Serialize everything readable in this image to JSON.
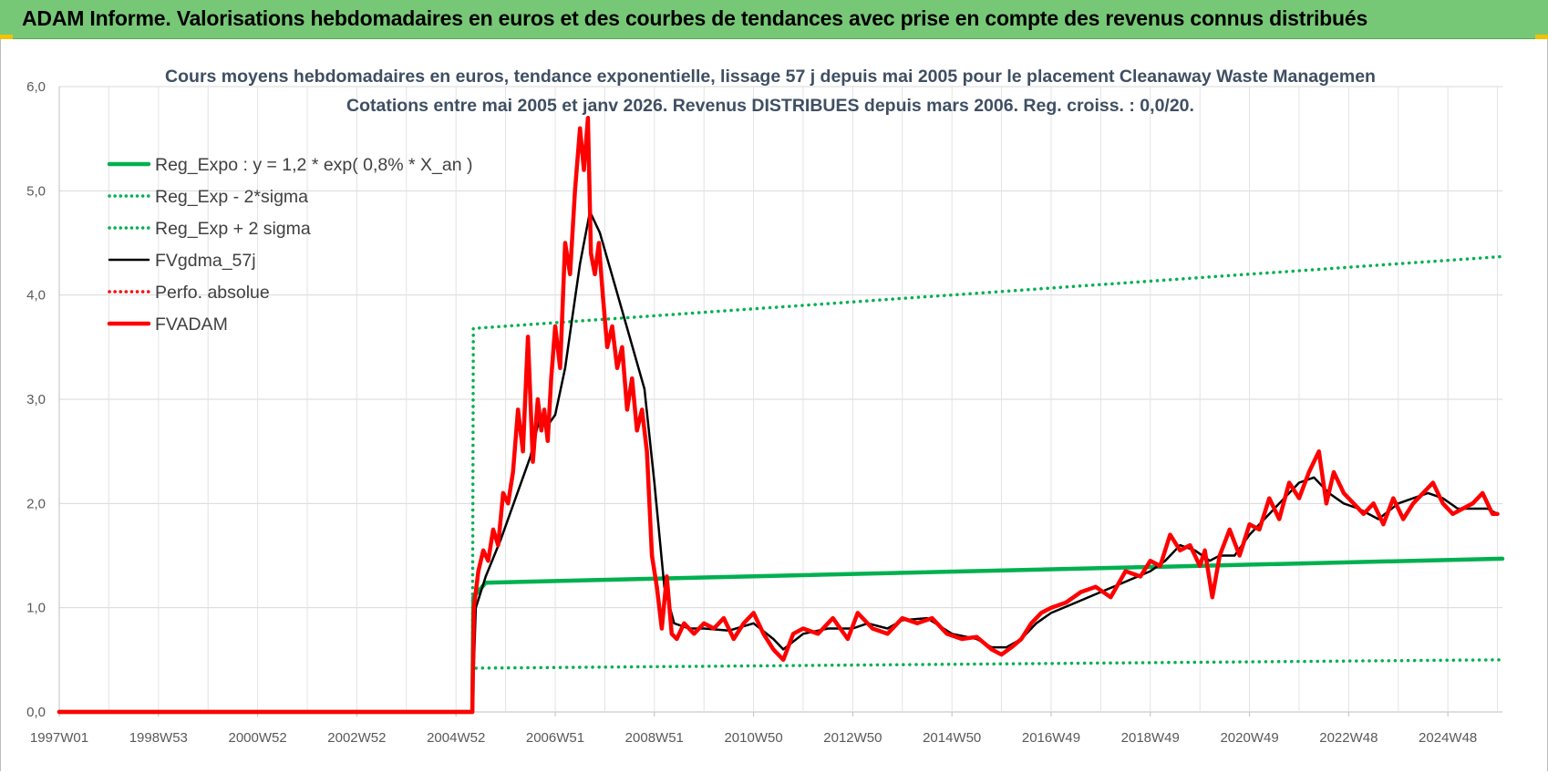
{
  "banner": {
    "title": "ADAM Informe. Valorisations hebdomadaires en euros et des courbes de tendances avec prise en compte des revenus connus distribués"
  },
  "colors": {
    "banner": "#77c876",
    "trend": "#00b050",
    "fvgdma": "#000000",
    "fvadam": "#ff0000",
    "perfo": "#ff0000"
  },
  "chart_data": {
    "type": "line",
    "title": "Cours moyens hebdomadaires en euros, tendance exponentielle, lissage 57 j depuis mai 2005 pour le placement Cleanaway Waste Managemen",
    "subtitle": "Cotations entre mai 2005 et janv 2026. Revenus DISTRIBUES depuis mars 2006. Reg. croiss. : 0,0/20.",
    "xlabel": "",
    "ylabel": "",
    "ylim": [
      0,
      6
    ],
    "y_ticks": [
      "0,0",
      "1,0",
      "2,0",
      "3,0",
      "4,0",
      "5,0",
      "6,0"
    ],
    "x_range": [
      1997.0,
      2026.1
    ],
    "x_ticks": [
      {
        "label": "1997W01",
        "x": 1997.0
      },
      {
        "label": "1998W53",
        "x": 1999.0
      },
      {
        "label": "2000W52",
        "x": 2001.0
      },
      {
        "label": "2002W52",
        "x": 2003.0
      },
      {
        "label": "2004W52",
        "x": 2005.0
      },
      {
        "label": "2006W51",
        "x": 2007.0
      },
      {
        "label": "2008W51",
        "x": 2009.0
      },
      {
        "label": "2010W50",
        "x": 2011.0
      },
      {
        "label": "2012W50",
        "x": 2013.0
      },
      {
        "label": "2014W50",
        "x": 2015.0
      },
      {
        "label": "2016W49",
        "x": 2017.0
      },
      {
        "label": "2018W49",
        "x": 2019.0
      },
      {
        "label": "2020W49",
        "x": 2021.0
      },
      {
        "label": "2022W48",
        "x": 2023.0
      },
      {
        "label": "2024W48",
        "x": 2025.0
      }
    ],
    "grid": true,
    "legend_position": "top-left",
    "series": [
      {
        "name": "Reg_Expo : y = 1,2 * exp( 0,8% *  X_an )",
        "style": "solid-thick",
        "color": "#00b050",
        "x": [
          1997.0,
          2005.33,
          2005.35,
          2005.6,
          2026.1
        ],
        "y": [
          0,
          0,
          1.1,
          1.24,
          1.47
        ]
      },
      {
        "name": "Reg_Exp - 2*sigma",
        "style": "dotted",
        "color": "#00b050",
        "x": [
          1997.0,
          2005.33,
          2005.35,
          2026.1
        ],
        "y": [
          0,
          0,
          0.42,
          0.5
        ]
      },
      {
        "name": "Reg_Exp + 2 sigma",
        "style": "dotted",
        "color": "#00b050",
        "x": [
          1997.0,
          2005.33,
          2005.35,
          2026.1
        ],
        "y": [
          0,
          0,
          3.68,
          4.37
        ]
      },
      {
        "name": "FVgdma_57j",
        "style": "solid",
        "color": "#000000",
        "x": [
          1997.0,
          2005.33,
          2005.4,
          2005.6,
          2005.9,
          2006.2,
          2006.5,
          2006.7,
          2006.85,
          2007.0,
          2007.2,
          2007.35,
          2007.5,
          2007.7,
          2007.9,
          2008.2,
          2008.5,
          2008.8,
          2009.0,
          2009.2,
          2009.4,
          2009.7,
          2010.0,
          2010.5,
          2011.0,
          2011.4,
          2011.6,
          2012.0,
          2012.5,
          2013.0,
          2013.3,
          2013.7,
          2014.0,
          2014.5,
          2015.0,
          2015.5,
          2015.8,
          2016.1,
          2016.4,
          2016.7,
          2017.0,
          2017.5,
          2018.0,
          2018.5,
          2019.0,
          2019.3,
          2019.6,
          2019.9,
          2020.2,
          2020.4,
          2020.7,
          2021.0,
          2021.3,
          2021.6,
          2022.0,
          2022.3,
          2022.6,
          2022.9,
          2023.2,
          2023.6,
          2024.0,
          2024.3,
          2024.6,
          2024.9,
          2025.2,
          2025.5,
          2025.8,
          2026.0
        ],
        "y": [
          0,
          0,
          1.0,
          1.3,
          1.65,
          2.05,
          2.45,
          2.85,
          2.75,
          2.85,
          3.3,
          3.8,
          4.3,
          4.8,
          4.6,
          4.1,
          3.6,
          3.1,
          2.2,
          1.2,
          0.85,
          0.8,
          0.8,
          0.78,
          0.85,
          0.7,
          0.6,
          0.75,
          0.8,
          0.8,
          0.85,
          0.8,
          0.88,
          0.9,
          0.75,
          0.7,
          0.62,
          0.62,
          0.7,
          0.85,
          0.95,
          1.05,
          1.15,
          1.25,
          1.35,
          1.45,
          1.6,
          1.55,
          1.45,
          1.5,
          1.5,
          1.7,
          1.85,
          2.0,
          2.2,
          2.25,
          2.1,
          2.0,
          1.95,
          1.85,
          2.0,
          2.05,
          2.1,
          2.05,
          1.95,
          1.95,
          1.95,
          1.9
        ]
      },
      {
        "name": "Perfo. absolue",
        "style": "dotted",
        "color": "#ff0000",
        "x": [],
        "y": []
      },
      {
        "name": "FVADAM",
        "style": "solid-thick",
        "color": "#ff0000",
        "x": [
          1997.0,
          2005.33,
          2005.36,
          2005.45,
          2005.55,
          2005.65,
          2005.75,
          2005.85,
          2005.95,
          2006.05,
          2006.15,
          2006.25,
          2006.35,
          2006.45,
          2006.55,
          2006.65,
          2006.72,
          2006.78,
          2006.85,
          2006.92,
          2007.0,
          2007.1,
          2007.2,
          2007.3,
          2007.4,
          2007.5,
          2007.58,
          2007.66,
          2007.72,
          2007.8,
          2007.88,
          2007.96,
          2008.05,
          2008.15,
          2008.25,
          2008.35,
          2008.45,
          2008.55,
          2008.65,
          2008.75,
          2008.85,
          2008.95,
          2009.05,
          2009.15,
          2009.25,
          2009.35,
          2009.45,
          2009.6,
          2009.8,
          2010.0,
          2010.2,
          2010.4,
          2010.6,
          2010.8,
          2011.0,
          2011.2,
          2011.4,
          2011.6,
          2011.8,
          2012.0,
          2012.3,
          2012.6,
          2012.9,
          2013.1,
          2013.4,
          2013.7,
          2014.0,
          2014.3,
          2014.6,
          2014.9,
          2015.2,
          2015.5,
          2015.8,
          2016.0,
          2016.2,
          2016.4,
          2016.6,
          2016.8,
          2017.0,
          2017.3,
          2017.6,
          2017.9,
          2018.2,
          2018.5,
          2018.8,
          2019.0,
          2019.2,
          2019.4,
          2019.6,
          2019.8,
          2020.0,
          2020.1,
          2020.25,
          2020.4,
          2020.6,
          2020.8,
          2021.0,
          2021.2,
          2021.4,
          2021.6,
          2021.8,
          2022.0,
          2022.2,
          2022.4,
          2022.55,
          2022.7,
          2022.9,
          2023.1,
          2023.3,
          2023.5,
          2023.7,
          2023.9,
          2024.1,
          2024.3,
          2024.5,
          2024.7,
          2024.9,
          2025.1,
          2025.3,
          2025.5,
          2025.7,
          2025.9,
          2026.0
        ],
        "y": [
          0,
          0,
          1.0,
          1.35,
          1.55,
          1.45,
          1.75,
          1.6,
          2.1,
          2.0,
          2.3,
          2.9,
          2.5,
          3.6,
          2.4,
          3.0,
          2.7,
          2.9,
          2.6,
          3.2,
          3.7,
          3.3,
          4.5,
          4.2,
          5.0,
          5.6,
          5.2,
          5.7,
          4.4,
          4.2,
          4.5,
          4.0,
          3.5,
          3.7,
          3.3,
          3.5,
          2.9,
          3.2,
          2.7,
          2.9,
          2.5,
          1.5,
          1.2,
          0.8,
          1.3,
          0.75,
          0.7,
          0.85,
          0.75,
          0.85,
          0.8,
          0.9,
          0.7,
          0.85,
          0.95,
          0.75,
          0.6,
          0.5,
          0.75,
          0.8,
          0.75,
          0.9,
          0.7,
          0.95,
          0.8,
          0.75,
          0.9,
          0.85,
          0.9,
          0.75,
          0.7,
          0.72,
          0.6,
          0.55,
          0.62,
          0.7,
          0.85,
          0.95,
          1.0,
          1.05,
          1.15,
          1.2,
          1.1,
          1.35,
          1.3,
          1.45,
          1.4,
          1.7,
          1.55,
          1.6,
          1.4,
          1.55,
          1.1,
          1.5,
          1.75,
          1.5,
          1.8,
          1.75,
          2.05,
          1.85,
          2.2,
          2.05,
          2.3,
          2.5,
          2.0,
          2.3,
          2.1,
          2.0,
          1.9,
          2.0,
          1.8,
          2.05,
          1.85,
          2.0,
          2.1,
          2.2,
          2.0,
          1.9,
          1.95,
          2.0,
          2.1,
          1.9,
          1.9
        ]
      }
    ]
  }
}
